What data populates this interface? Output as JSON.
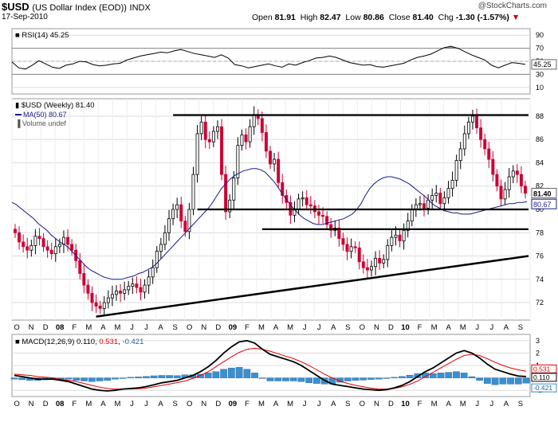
{
  "header": {
    "symbol": "$USD",
    "name": "(US Dollar Index (EOD))",
    "exchange": "INDX",
    "date": "17-Sep-2010",
    "brand": "@StockCharts.com",
    "open_label": "Open",
    "open": "81.91",
    "high_label": "High",
    "high": "82.47",
    "low_label": "Low",
    "low": "80.86",
    "close_label": "Close",
    "close": "81.40",
    "chg_label": "Chg",
    "chg": "-1.30 (-1.57%)",
    "chg_marker": "▼"
  },
  "colors": {
    "up_candle": "#000000",
    "down_candle": "#cc0033",
    "ma_line": "#1a1a8c",
    "macd_line": "#000000",
    "signal_line": "#e00000",
    "histogram": "#3a8fd0",
    "rsi_fill": "#5a7a5a",
    "grid": "#dcdcdc"
  },
  "chart_data": [
    {
      "type": "line",
      "panel": "rsi",
      "legend": "RSI(14) 45.25",
      "series": [
        {
          "name": "RSI(14)",
          "values": [
            49,
            40,
            38,
            44,
            51,
            46,
            41,
            39,
            44,
            46,
            50,
            49,
            45,
            43,
            44,
            46,
            47,
            52,
            55,
            58,
            60,
            62,
            64,
            63,
            66,
            68,
            65,
            62,
            60,
            58,
            56,
            60,
            55,
            45,
            43,
            40,
            42,
            44,
            46,
            43,
            41,
            46,
            44,
            48,
            51,
            55,
            56,
            58,
            56,
            52,
            48,
            46,
            44,
            45,
            42,
            41,
            43,
            45,
            47,
            52,
            56,
            58,
            61,
            66,
            71,
            73,
            70,
            65,
            60,
            56,
            52,
            44,
            40,
            44,
            48,
            47,
            45.25
          ]
        }
      ],
      "yticks": [
        10,
        30,
        50,
        70,
        90
      ],
      "overbought": 70,
      "oversold": 30,
      "ylim": [
        0,
        100
      ],
      "last_value": "45.25"
    },
    {
      "type": "candlestick",
      "panel": "price",
      "legend_price": "$USD (Weekly) 81.40",
      "legend_ma": "MA(50) 80.67",
      "legend_volume": "Volume undef",
      "yticks": [
        72,
        74,
        76,
        78,
        80,
        82,
        84,
        86,
        88
      ],
      "ylim": [
        70.5,
        89.5
      ],
      "xlabels": [
        "O",
        "N",
        "D",
        "08",
        "F",
        "M",
        "A",
        "M",
        "J",
        "J",
        "A",
        "S",
        "O",
        "N",
        "D",
        "09",
        "F",
        "M",
        "A",
        "M",
        "J",
        "J",
        "A",
        "S",
        "O",
        "N",
        "D",
        "10",
        "F",
        "M",
        "A",
        "M",
        "J",
        "J",
        "A",
        "S"
      ],
      "closes": [
        78.0,
        77.2,
        76.8,
        76.5,
        76.9,
        77.7,
        77.5,
        76.8,
        76.5,
        76.2,
        76.8,
        77.0,
        77.6,
        77.0,
        76.5,
        75.6,
        74.5,
        73.5,
        72.8,
        72.0,
        71.7,
        71.5,
        72.0,
        72.4,
        72.7,
        73.0,
        72.8,
        73.1,
        73.4,
        73.6,
        73.3,
        72.9,
        73.5,
        74.2,
        75.0,
        76.4,
        77.0,
        78.0,
        79.2,
        80.0,
        80.4,
        79.0,
        78.1,
        80.0,
        83.0,
        86.5,
        87.5,
        86.0,
        85.8,
        86.7,
        87.1,
        83.0,
        79.8,
        80.8,
        82.7,
        85.5,
        86.4,
        85.8,
        87.1,
        88.1,
        87.8,
        86.6,
        85.0,
        83.9,
        84.3,
        82.3,
        81.2,
        80.6,
        79.5,
        80.0,
        80.9,
        81.0,
        80.4,
        80.3,
        79.8,
        79.5,
        79.4,
        78.7,
        78.2,
        78.4,
        77.5,
        77.0,
        76.4,
        76.8,
        76.7,
        75.5,
        75.0,
        74.8,
        75.1,
        75.8,
        75.4,
        75.7,
        76.9,
        77.6,
        77.8,
        77.3,
        78.2,
        79.0,
        80.0,
        80.4,
        80.5,
        80.1,
        80.8,
        81.2,
        81.4,
        80.5,
        81.0,
        81.8,
        82.5,
        84.2,
        85.2,
        86.5,
        87.5,
        88.0,
        87.0,
        86.0,
        85.2,
        84.3,
        83.0,
        82.0,
        80.9,
        81.7,
        82.8,
        83.3,
        83.0,
        82.0,
        81.4
      ],
      "ma50": [
        80.6,
        80.4,
        80.1,
        79.8,
        79.5,
        79.2,
        78.8,
        78.5,
        78.2,
        77.8,
        77.5,
        77.2,
        77.0,
        76.7,
        76.3,
        75.9,
        75.5,
        75.1,
        74.8,
        74.6,
        74.4,
        74.2,
        74.1,
        74.0,
        74.0,
        74.0,
        74.1,
        74.2,
        74.3,
        74.5,
        74.6,
        74.8,
        75.0,
        75.3,
        75.7,
        76.1,
        76.5,
        76.9,
        77.3,
        77.7,
        78.1,
        78.5,
        78.9,
        79.3,
        79.7,
        80.1,
        80.6,
        81.2,
        81.8,
        82.2,
        82.6,
        82.9,
        83.1,
        83.3,
        83.4,
        83.5,
        83.5,
        83.4,
        83.2,
        82.8,
        82.4,
        81.9,
        81.3,
        80.8,
        80.3,
        79.9,
        79.5,
        79.2,
        79.0,
        78.8,
        78.7,
        78.7,
        78.8,
        78.9,
        79.0,
        79.1,
        79.2,
        79.4,
        79.6,
        80.0,
        80.5,
        81.2,
        81.8,
        82.2,
        82.5,
        82.7,
        82.8,
        82.8,
        82.7,
        82.6,
        82.4,
        82.2,
        81.9,
        81.6,
        81.3,
        81.0,
        80.6,
        80.3,
        80.1,
        79.9,
        79.8,
        79.7,
        79.7,
        79.6,
        79.6,
        79.6,
        79.7,
        79.8,
        79.9,
        80.0,
        80.1,
        80.2,
        80.3,
        80.4,
        80.5,
        80.5,
        80.6,
        80.6,
        80.67
      ],
      "last_close_label": "81.40",
      "last_ma_label": "80.67",
      "resistance_level": 88.1,
      "support_levels": [
        80.0,
        78.3
      ],
      "trendline": {
        "from": [
          72.0,
          70.8
        ],
        "to": [
          76.1,
          76.0
        ]
      }
    },
    {
      "type": "line",
      "panel": "macd",
      "legend_prefix": "MACD(12,26,9)",
      "legend_macd": "0.110",
      "legend_signal": "0.531",
      "legend_hist": "-0.421",
      "yticks": [
        -1,
        0,
        1,
        2,
        3
      ],
      "ylim": [
        -1.5,
        3.5
      ],
      "macd": [
        0.2,
        0.1,
        0.0,
        -0.1,
        -0.1,
        -0.1,
        -0.2,
        -0.3,
        -0.5,
        -0.7,
        -0.9,
        -1.0,
        -1.05,
        -1.0,
        -0.9,
        -0.85,
        -0.8,
        -0.7,
        -0.55,
        -0.4,
        -0.3,
        -0.2,
        0.0,
        0.2,
        0.5,
        0.9,
        1.4,
        2.0,
        2.5,
        2.9,
        3.0,
        2.8,
        2.3,
        1.9,
        1.7,
        1.5,
        1.3,
        1.0,
        0.6,
        0.2,
        -0.2,
        -0.5,
        -0.6,
        -0.7,
        -0.8,
        -0.9,
        -0.95,
        -1.0,
        -0.95,
        -0.8,
        -0.6,
        -0.3,
        0.1,
        0.5,
        0.8,
        1.2,
        1.6,
        2.0,
        2.2,
        2.0,
        1.6,
        1.1,
        0.7,
        0.5,
        0.3,
        0.15,
        0.11
      ],
      "signal": [
        0.3,
        0.25,
        0.2,
        0.1,
        0.05,
        0.0,
        -0.1,
        -0.2,
        -0.3,
        -0.45,
        -0.6,
        -0.75,
        -0.85,
        -0.9,
        -0.9,
        -0.9,
        -0.88,
        -0.82,
        -0.72,
        -0.6,
        -0.5,
        -0.38,
        -0.25,
        -0.05,
        0.2,
        0.5,
        0.9,
        1.3,
        1.7,
        2.05,
        2.3,
        2.4,
        2.3,
        2.15,
        1.95,
        1.75,
        1.55,
        1.3,
        1.0,
        0.65,
        0.3,
        0.0,
        -0.25,
        -0.45,
        -0.6,
        -0.72,
        -0.82,
        -0.9,
        -0.9,
        -0.85,
        -0.72,
        -0.52,
        -0.25,
        0.1,
        0.45,
        0.8,
        1.15,
        1.5,
        1.8,
        1.9,
        1.8,
        1.55,
        1.25,
        1.0,
        0.8,
        0.65,
        0.531
      ],
      "histogram": [
        -0.1,
        -0.15,
        -0.2,
        -0.2,
        -0.15,
        -0.1,
        -0.1,
        -0.1,
        -0.2,
        -0.25,
        -0.3,
        -0.25,
        -0.2,
        -0.1,
        0.0,
        0.05,
        0.08,
        0.12,
        0.17,
        0.2,
        0.2,
        0.18,
        0.25,
        0.25,
        0.3,
        0.4,
        0.5,
        0.7,
        0.8,
        0.85,
        0.7,
        0.4,
        0.0,
        -0.25,
        -0.25,
        -0.25,
        -0.25,
        -0.3,
        -0.4,
        -0.45,
        -0.5,
        -0.5,
        -0.35,
        -0.25,
        -0.2,
        -0.18,
        -0.13,
        -0.1,
        -0.05,
        0.05,
        0.12,
        0.22,
        0.35,
        0.4,
        0.35,
        0.4,
        0.45,
        0.5,
        0.4,
        0.1,
        -0.2,
        -0.45,
        -0.55,
        -0.5,
        -0.5,
        -0.5,
        -0.421
      ],
      "xlabels": [
        "O",
        "N",
        "D",
        "08",
        "F",
        "M",
        "A",
        "M",
        "J",
        "J",
        "A",
        "S",
        "O",
        "N",
        "D",
        "09",
        "F",
        "M",
        "A",
        "M",
        "J",
        "J",
        "A",
        "S",
        "O",
        "N",
        "D",
        "10",
        "F",
        "M",
        "A",
        "M",
        "J",
        "J",
        "A",
        "S"
      ]
    }
  ]
}
